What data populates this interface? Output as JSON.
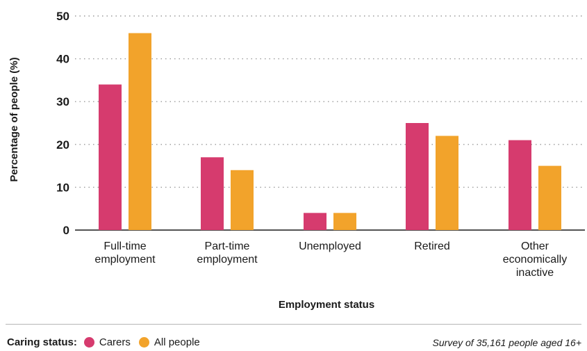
{
  "chart_data": {
    "type": "bar",
    "categories": [
      [
        "Full-time",
        "employment"
      ],
      [
        "Part-time",
        "employment"
      ],
      [
        "Unemployed"
      ],
      [
        "Retired"
      ],
      [
        "Other",
        "economically",
        "inactive"
      ]
    ],
    "series": [
      {
        "name": "Carers",
        "color": "#d63b6e",
        "values": [
          34,
          17,
          4,
          25,
          21
        ]
      },
      {
        "name": "All people",
        "color": "#f2a32b",
        "values": [
          46,
          14,
          4,
          22,
          15
        ]
      }
    ],
    "xlabel": "Employment status",
    "ylabel": "Percentage of people (%)",
    "ylim": [
      0,
      50
    ],
    "yticks": [
      0,
      10,
      20,
      30,
      40,
      50
    ],
    "grid": "horizontal dotted",
    "legend_placement": "bottom-left"
  },
  "legend": {
    "title": "Caring status:",
    "items": [
      {
        "label": "Carers",
        "color": "#d63b6e"
      },
      {
        "label": "All people",
        "color": "#f2a32b"
      }
    ]
  },
  "source_note": "Survey of 35,161 people aged 16+"
}
